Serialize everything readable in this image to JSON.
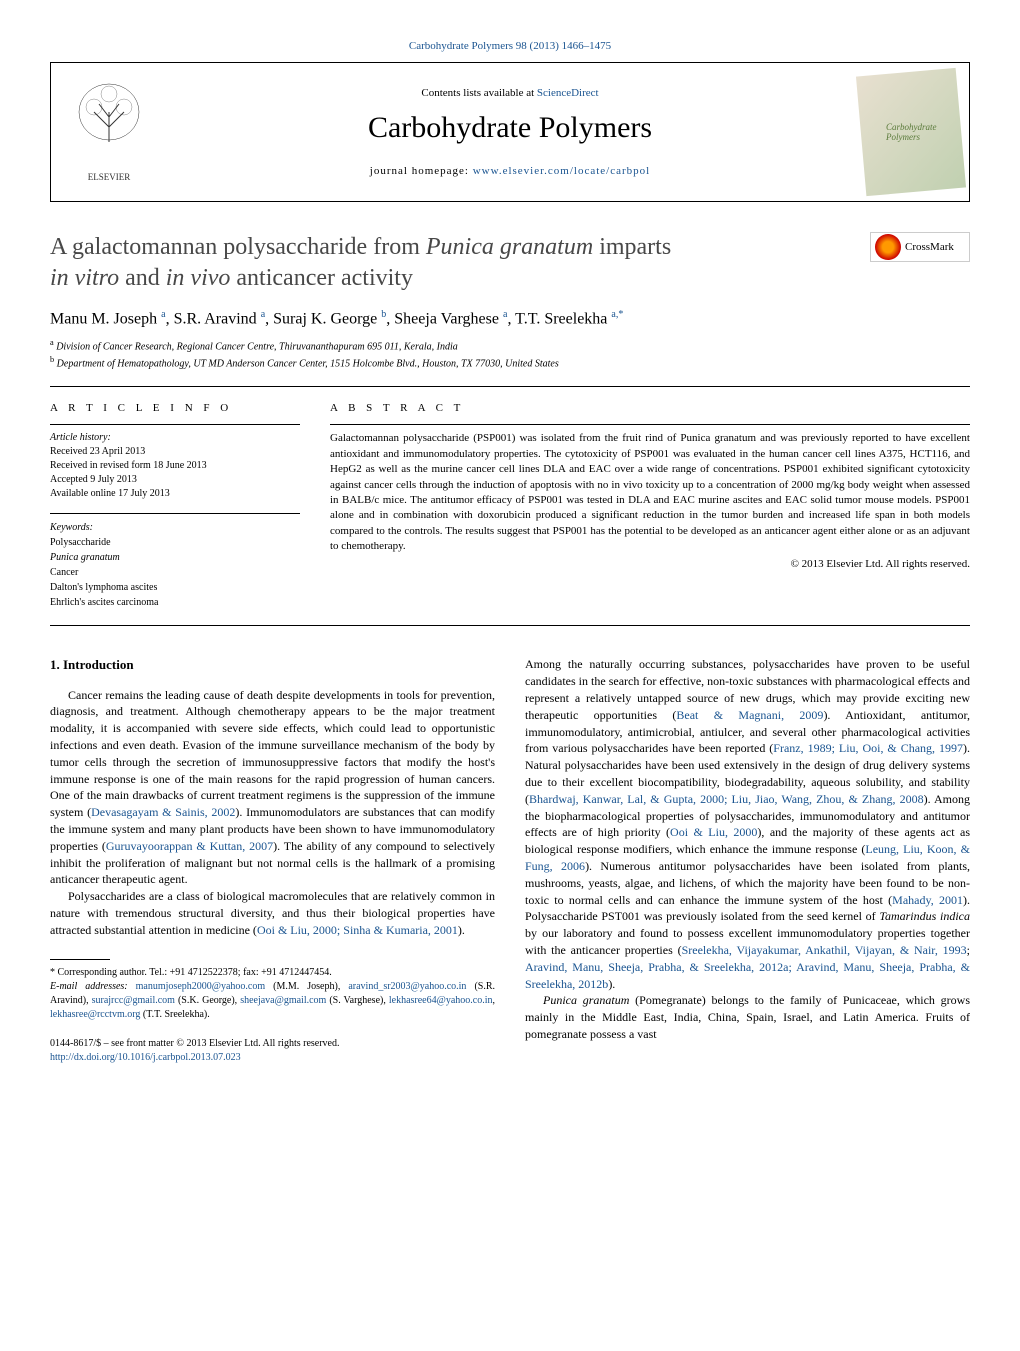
{
  "header": {
    "citation": "Carbohydrate Polymers 98 (2013) 1466–1475",
    "contents_prefix": "Contents lists available at ",
    "contents_link": "ScienceDirect",
    "journal_name": "Carbohydrate Polymers",
    "homepage_label": "journal homepage: ",
    "homepage_url": "www.elsevier.com/locate/carbpol",
    "publisher": "ELSEVIER",
    "crossmark_label": "CrossMark"
  },
  "title": {
    "line1": "A galactomannan polysaccharide from ",
    "italic1": "Punica granatum",
    "line2": " imparts ",
    "italic2": "in vitro",
    "line3": " and ",
    "italic3": "in vivo",
    "line4": " anticancer activity"
  },
  "authors_html": "Manu M. Joseph <sup>a</sup>, S.R. Aravind <sup>a</sup>, Suraj K. George <sup>b</sup>, Sheeja Varghese <sup>a</sup>, T.T. Sreelekha <sup>a,*</sup>",
  "affiliations": {
    "a": "Division of Cancer Research, Regional Cancer Centre, Thiruvananthapuram 695 011, Kerala, India",
    "b": "Department of Hematopathology, UT MD Anderson Cancer Center, 1515 Holcombe Blvd., Houston, TX 77030, United States"
  },
  "article_info": {
    "heading": "A R T I C L E    I N F O",
    "history_label": "Article history:",
    "history": [
      "Received 23 April 2013",
      "Received in revised form 18 June 2013",
      "Accepted 9 July 2013",
      "Available online 17 July 2013"
    ],
    "keywords_label": "Keywords:",
    "keywords": [
      "Polysaccharide",
      "Punica granatum",
      "Cancer",
      "Dalton's lymphoma ascites",
      "Ehrlich's ascites carcinoma"
    ]
  },
  "abstract": {
    "heading": "A B S T R A C T",
    "text": "Galactomannan polysaccharide (PSP001) was isolated from the fruit rind of Punica granatum and was previously reported to have excellent antioxidant and immunomodulatory properties. The cytotoxicity of PSP001 was evaluated in the human cancer cell lines A375, HCT116, and HepG2 as well as the murine cancer cell lines DLA and EAC over a wide range of concentrations. PSP001 exhibited significant cytotoxicity against cancer cells through the induction of apoptosis with no in vivo toxicity up to a concentration of 2000 mg/kg body weight when assessed in BALB/c mice. The antitumor efficacy of PSP001 was tested in DLA and EAC murine ascites and EAC solid tumor mouse models. PSP001 alone and in combination with doxorubicin produced a significant reduction in the tumor burden and increased life span in both models compared to the controls. The results suggest that PSP001 has the potential to be developed as an anticancer agent either alone or as an adjuvant to chemotherapy.",
    "copyright": "© 2013 Elsevier Ltd. All rights reserved."
  },
  "sections": {
    "intro_heading": "1.  Introduction",
    "col1_p1": "Cancer remains the leading cause of death despite developments in tools for prevention, diagnosis, and treatment. Although chemotherapy appears to be the major treatment modality, it is accompanied with severe side effects, which could lead to opportunistic infections and even death. Evasion of the immune surveillance mechanism of the body by tumor cells through the secretion of immunosuppressive factors that modify the host's immune response is one of the main reasons for the rapid progression of human cancers. One of the main drawbacks of current treatment regimens is the suppression of the immune system (",
    "col1_ref1": "Devasagayam & Sainis, 2002",
    "col1_p1b": "). Immunomodulators are substances that can modify the immune system and many plant products have been shown to have immunomodulatory properties (",
    "col1_ref2": "Guruvayoorappan & Kuttan, 2007",
    "col1_p1c": "). The ability of any compound to selectively inhibit the proliferation of malignant but not normal cells is the hallmark of a promising anticancer therapeutic agent.",
    "col1_p2": "Polysaccharides are a class of biological macromolecules that are relatively common in nature with tremendous structural diversity, and thus their biological properties have attracted substantial attention in medicine (",
    "col1_ref3": "Ooi & Liu, 2000; Sinha & Kumaria, 2001",
    "col1_p2b": ").",
    "col2_p1": "Among the naturally occurring substances, polysaccharides have proven to be useful candidates in the search for effective, non-toxic substances with pharmacological effects and represent a relatively untapped source of new drugs, which may provide exciting new therapeutic opportunities (",
    "col2_ref1": "Beat & Magnani, 2009",
    "col2_p1b": "). Antioxidant, antitumor, immunomodulatory, antimicrobial, antiulcer, and several other pharmacological activities from various polysaccharides have been reported (",
    "col2_ref2": "Franz, 1989; Liu, Ooi, & Chang, 1997",
    "col2_p1c": "). Natural polysaccharides have been used extensively in the design of drug delivery systems due to their excellent biocompatibility, biodegradability, aqueous solubility, and stability (",
    "col2_ref3": "Bhardwaj, Kanwar, Lal, & Gupta, 2000; Liu, Jiao, Wang, Zhou, & Zhang, 2008",
    "col2_p1d": "). Among the biopharmacological properties of polysaccharides, immunomodulatory and antitumor effects are of high priority (",
    "col2_ref4": "Ooi & Liu, 2000",
    "col2_p1e": "), and the majority of these agents act as biological response modifiers, which enhance the immune response (",
    "col2_ref5": "Leung, Liu, Koon, & Fung, 2006",
    "col2_p1f": "). Numerous antitumor polysaccharides have been isolated from plants, mushrooms, yeasts, algae, and lichens, of which the majority have been found to be non-toxic to normal cells and can enhance the immune system of the host (",
    "col2_ref6": "Mahady, 2001",
    "col2_p1g": "). Polysaccharide PST001 was previously isolated from the seed kernel of ",
    "col2_italic1": "Tamarindus indica",
    "col2_p1h": " by our laboratory and found to possess excellent immunomodulatory properties together with the anticancer properties (",
    "col2_ref7": "Sreelekha, Vijayakumar, Ankathil, Vijayan, & Nair, 1993",
    "col2_p1i": "; ",
    "col2_ref8": "Aravind, Manu, Sheeja, Prabha, & Sreelekha, 2012a; Aravind, Manu, Sheeja, Prabha, & Sreelekha, 2012b",
    "col2_p1j": ").",
    "col2_p2_italic": "Punica granatum",
    "col2_p2": " (Pomegranate) belongs to the family of Punicaceae, which grows mainly in the Middle East, India, China, Spain, Israel, and Latin America. Fruits of pomegranate possess a vast"
  },
  "footnotes": {
    "corresp": "* Corresponding author. Tel.: +91 4712522378; fax: +91 4712447454.",
    "email_label": "E-mail addresses: ",
    "emails": [
      {
        "email": "manumjoseph2000@yahoo.com",
        "name": " (M.M. Joseph), "
      },
      {
        "email": "aravind_sr2003@yahoo.co.in",
        "name": " (S.R. Aravind), "
      },
      {
        "email": "surajrcc@gmail.com",
        "name": " (S.K. George), "
      },
      {
        "email": "sheejava@gmail.com",
        "name": " (S. Varghese), "
      },
      {
        "email": "lekhasree64@yahoo.co.in",
        "name": ", "
      },
      {
        "email": "lekhasree@rcctvm.org",
        "name": " (T.T. Sreelekha)."
      }
    ]
  },
  "bottom": {
    "issn": "0144-8617/$ – see front matter © 2013 Elsevier Ltd. All rights reserved.",
    "doi": "http://dx.doi.org/10.1016/j.carbpol.2013.07.023"
  }
}
